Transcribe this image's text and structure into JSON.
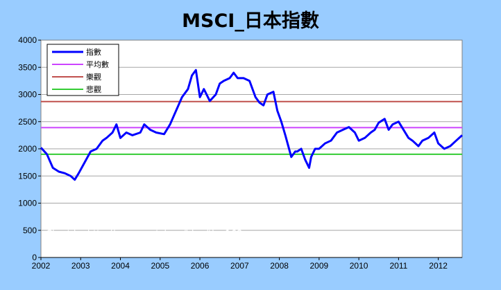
{
  "chart_data": {
    "type": "line",
    "title": "MSCI_日本指數",
    "xlabel": "",
    "ylabel": "",
    "xlim": [
      2002,
      2012.6
    ],
    "ylim": [
      0,
      4000
    ],
    "x_ticks": [
      "2002",
      "2003",
      "2004",
      "2005",
      "2006",
      "2007",
      "2008",
      "2009",
      "2010",
      "2011",
      "2012"
    ],
    "y_ticks": [
      "0",
      "500",
      "1000",
      "1500",
      "2000",
      "2500",
      "3000",
      "3500",
      "4000"
    ],
    "grid": "horizontal",
    "legend_position": "top-left",
    "watermark": "Chart by http://www.wretch.cc/blog/tivo168",
    "series": [
      {
        "name": "指數",
        "color": "#0000ff",
        "x": [
          2002.0,
          2002.15,
          2002.3,
          2002.45,
          2002.6,
          2002.75,
          2002.85,
          2002.95,
          2003.1,
          2003.25,
          2003.4,
          2003.55,
          2003.65,
          2003.8,
          2003.9,
          2004.0,
          2004.15,
          2004.3,
          2004.5,
          2004.6,
          2004.75,
          2004.9,
          2005.1,
          2005.25,
          2005.4,
          2005.55,
          2005.7,
          2005.8,
          2005.9,
          2006.0,
          2006.1,
          2006.25,
          2006.4,
          2006.5,
          2006.6,
          2006.75,
          2006.85,
          2006.95,
          2007.1,
          2007.25,
          2007.4,
          2007.5,
          2007.6,
          2007.7,
          2007.85,
          2007.95,
          2008.05,
          2008.15,
          2008.3,
          2008.4,
          2008.45,
          2008.55,
          2008.65,
          2008.75,
          2008.8,
          2008.9,
          2009.0,
          2009.15,
          2009.3,
          2009.45,
          2009.6,
          2009.75,
          2009.9,
          2010.0,
          2010.15,
          2010.3,
          2010.4,
          2010.5,
          2010.65,
          2010.75,
          2010.85,
          2011.0,
          2011.1,
          2011.25,
          2011.35,
          2011.5,
          2011.6,
          2011.75,
          2011.9,
          2012.0,
          2012.15,
          2012.3,
          2012.45,
          2012.6
        ],
        "values": [
          2020,
          1900,
          1650,
          1580,
          1550,
          1500,
          1430,
          1550,
          1750,
          1950,
          2000,
          2150,
          2200,
          2300,
          2450,
          2200,
          2300,
          2250,
          2300,
          2450,
          2350,
          2300,
          2270,
          2450,
          2700,
          2950,
          3100,
          3350,
          3450,
          2950,
          3100,
          2880,
          3000,
          3200,
          3250,
          3300,
          3400,
          3300,
          3300,
          3250,
          2950,
          2850,
          2800,
          3000,
          3050,
          2700,
          2500,
          2250,
          1850,
          1950,
          1950,
          2000,
          1800,
          1650,
          1850,
          2000,
          2000,
          2100,
          2150,
          2300,
          2350,
          2400,
          2300,
          2150,
          2200,
          2300,
          2350,
          2480,
          2550,
          2350,
          2450,
          2500,
          2380,
          2200,
          2150,
          2050,
          2150,
          2200,
          2300,
          2100,
          2000,
          2050,
          2150,
          2250
        ]
      },
      {
        "name": "平均數",
        "color": "#cc44ff",
        "constant": 2390
      },
      {
        "name": "樂觀",
        "color": "#c0504d",
        "constant": 2870
      },
      {
        "name": "悲觀",
        "color": "#33cc33",
        "constant": 1900
      }
    ]
  }
}
